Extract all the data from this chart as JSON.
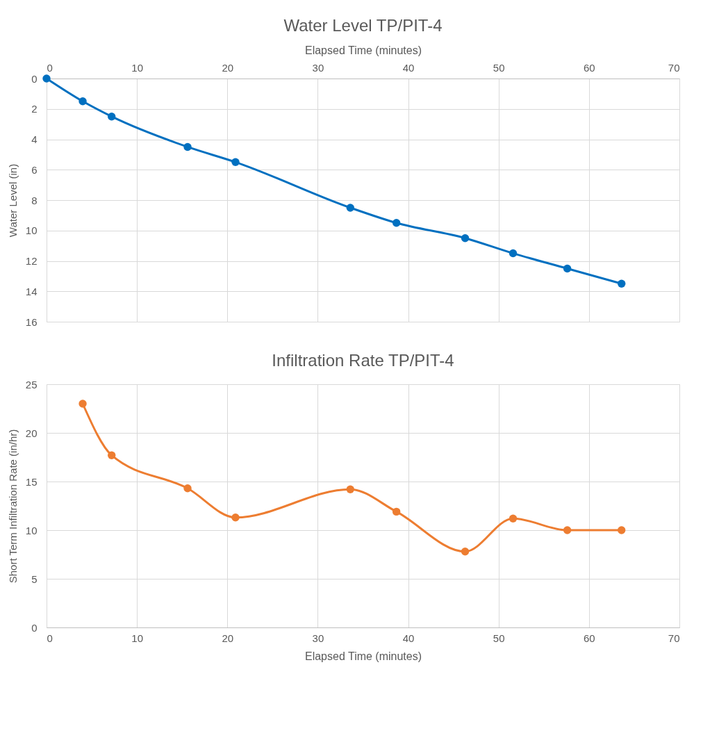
{
  "chart_data": [
    {
      "type": "line",
      "title": "Water Level TP/PIT-4",
      "xlabel": "Elapsed Time (minutes)",
      "ylabel": "Water Level  (in)",
      "x": [
        0,
        4.0,
        7.2,
        15.6,
        20.9,
        33.6,
        38.7,
        46.3,
        51.6,
        57.6,
        63.6
      ],
      "series": [
        {
          "color": "#0070c0",
          "values": [
            0,
            1.5,
            2.5,
            4.5,
            5.5,
            8.5,
            9.5,
            10.5,
            11.5,
            12.5,
            13.5
          ]
        }
      ],
      "xlim": [
        0,
        70
      ],
      "xticks": [
        0,
        10,
        20,
        30,
        40,
        50,
        60,
        70
      ],
      "ylim": [
        16,
        0
      ],
      "yticks": [
        0,
        2,
        4,
        6,
        8,
        10,
        12,
        14,
        16
      ],
      "grid": true,
      "marker": "circle"
    },
    {
      "type": "line",
      "title": "Infiltration Rate TP/PIT-4",
      "xlabel": "Elapsed Time (minutes)",
      "ylabel": "Short Term Infiltration Rate (in/hr)",
      "x": [
        4.0,
        7.2,
        15.6,
        20.9,
        33.6,
        38.7,
        46.3,
        51.6,
        57.6,
        63.6
      ],
      "series": [
        {
          "color": "#ed7d31",
          "values": [
            23.0,
            17.7,
            14.3,
            11.3,
            14.2,
            11.9,
            7.8,
            11.2,
            10.0,
            10.0
          ]
        }
      ],
      "xlim": [
        0,
        70
      ],
      "xticks": [
        0,
        10,
        20,
        30,
        40,
        50,
        60,
        70
      ],
      "ylim": [
        0,
        25
      ],
      "yticks": [
        0,
        5,
        10,
        15,
        20,
        25
      ],
      "grid": true,
      "marker": "circle"
    }
  ]
}
